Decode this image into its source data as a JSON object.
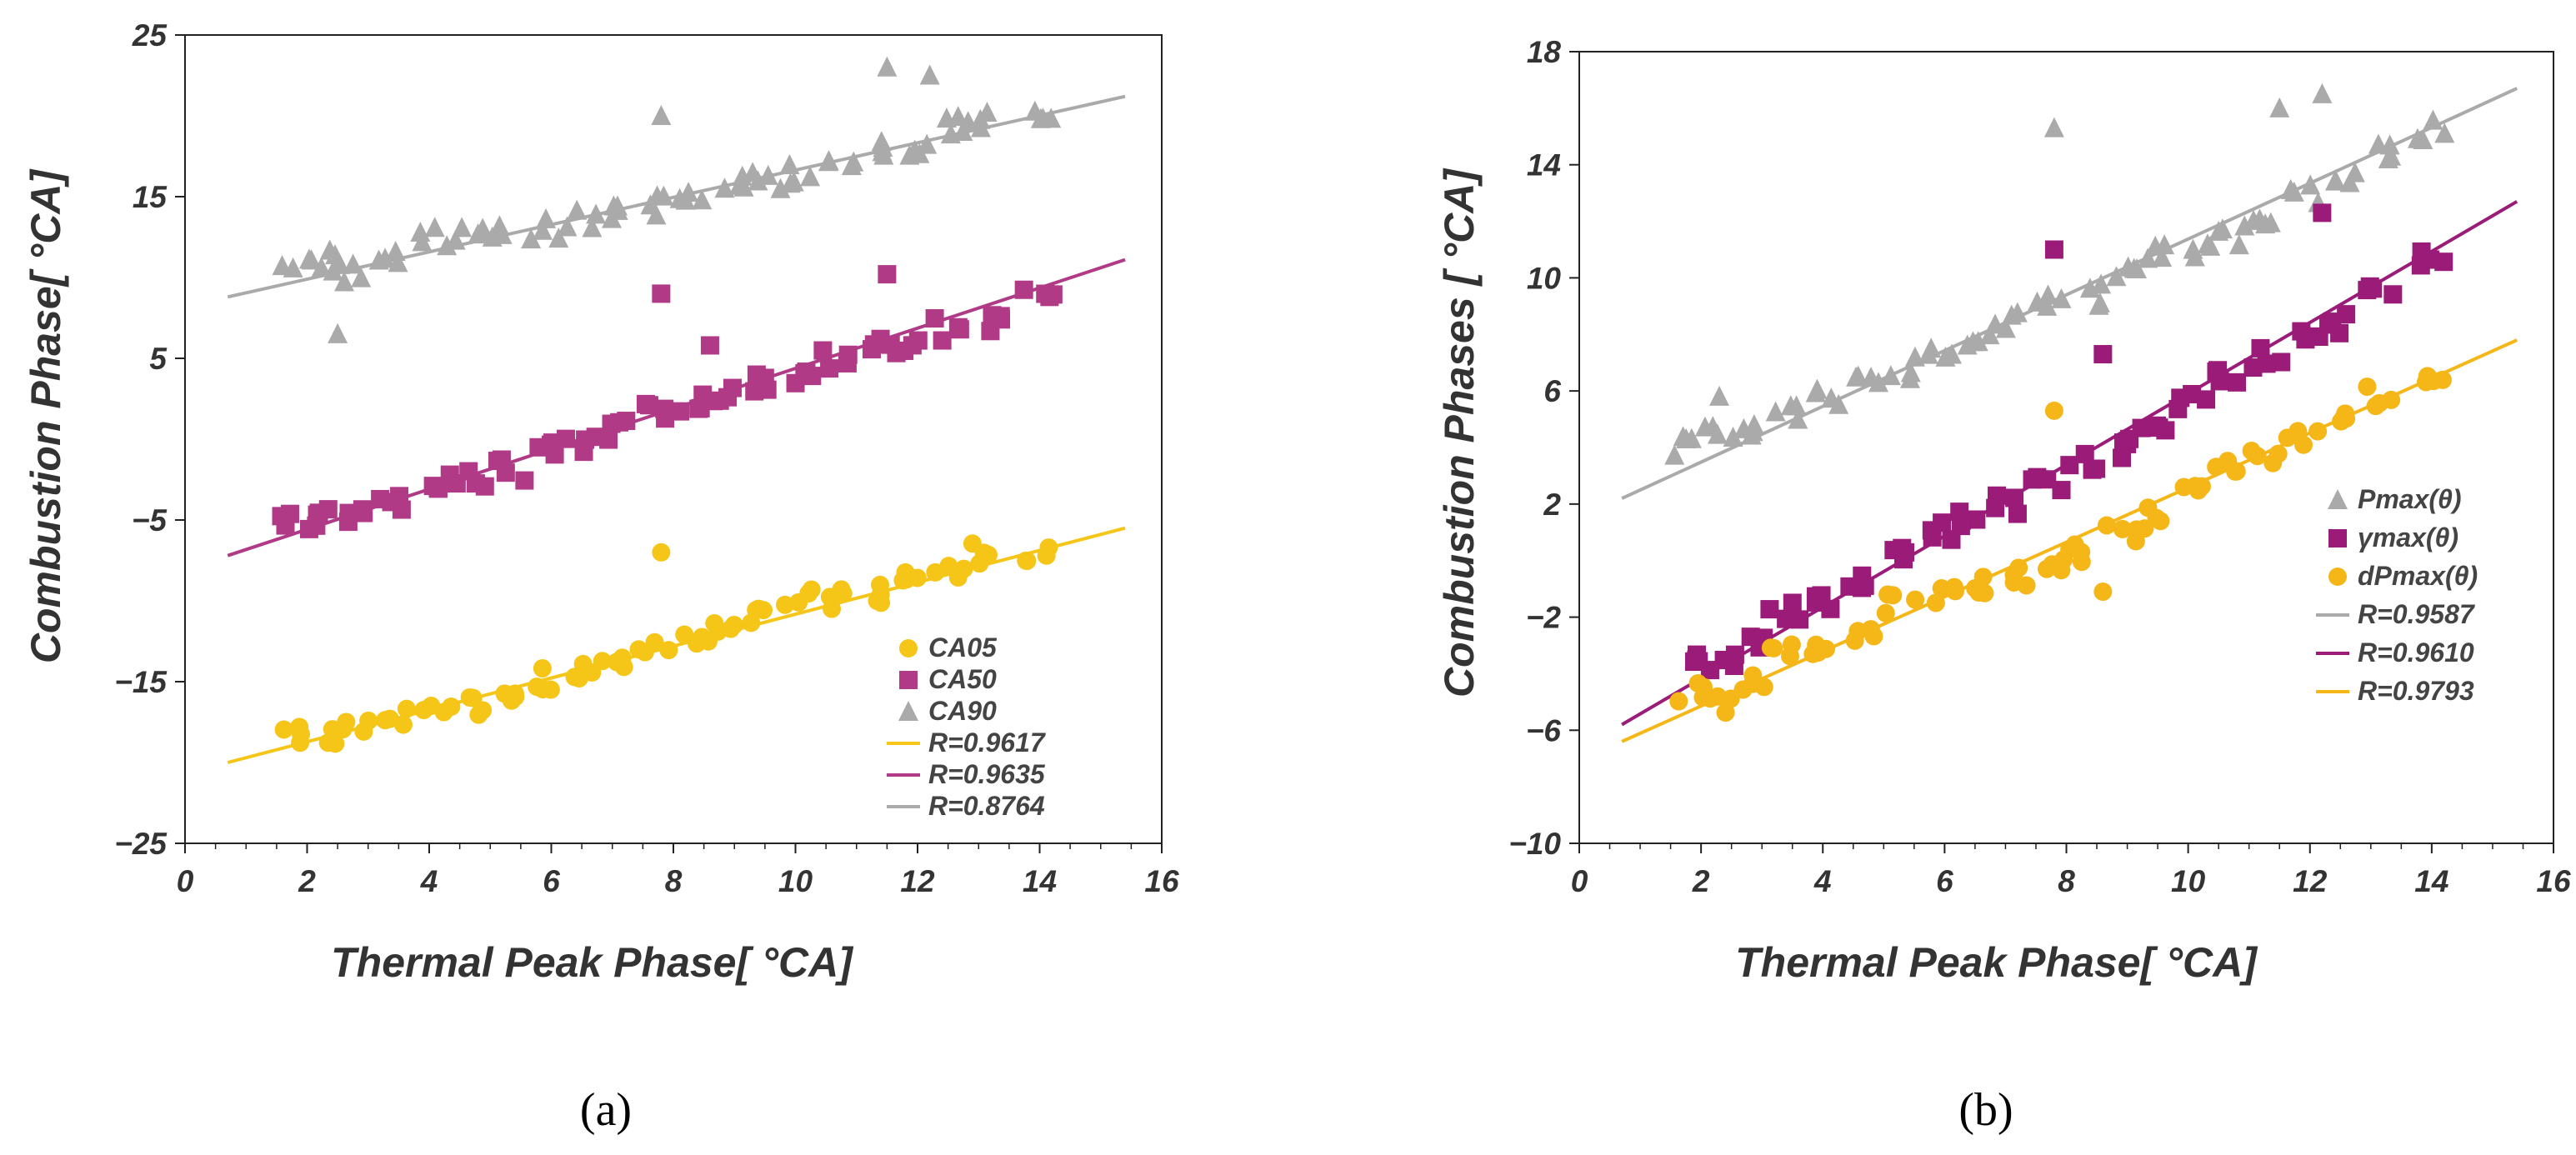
{
  "chart_data": [
    {
      "type": "scatter",
      "caption": "(a)",
      "title": "",
      "xlabel": "Thermal  Peak Phase[ °CA]",
      "ylabel": "Combustion  Phase[ °CA]",
      "xlim": [
        0,
        16
      ],
      "ylim": [
        -25,
        25
      ],
      "xticks": [
        "0",
        "2",
        "4",
        "6",
        "8",
        "10",
        "12",
        "14",
        "16"
      ],
      "yticks": [
        "25",
        "15",
        "5",
        "−5",
        "−15",
        "−25"
      ],
      "x": [
        1.8,
        2.3,
        2.8,
        3.4,
        4.1,
        4.7,
        5.3,
        5.9,
        6.5,
        7.1,
        7.7,
        8.3,
        8.9,
        9.5,
        10.1,
        10.7,
        11.3,
        11.9,
        12.5,
        13.1,
        14.0
      ],
      "series": [
        {
          "name": "CA05",
          "marker": "circle",
          "color": "#F5C518",
          "values": [
            -18.5,
            -18.4,
            -17.9,
            -17.2,
            -16.5,
            -16.5,
            -15.6,
            -14.8,
            -14.4,
            -13.8,
            -13.2,
            -12.5,
            -12.0,
            -11.0,
            -10.0,
            -9.8,
            -9.6,
            -8.5,
            -8.3,
            -7.0,
            -7.0
          ],
          "outliers": [
            {
              "x": 7.8,
              "y": -7.0
            }
          ]
        },
        {
          "name": "CA50",
          "marker": "square",
          "color": "#B03A86",
          "values": [
            -5.3,
            -5.0,
            -4.6,
            -3.7,
            -2.8,
            -2.6,
            -1.9,
            -0.9,
            -0.2,
            0.5,
            1.6,
            2.3,
            2.6,
            3.6,
            4.0,
            4.8,
            5.6,
            5.8,
            6.8,
            7.2,
            9.0
          ],
          "outliers": [
            {
              "x": 7.8,
              "y": 9.0
            },
            {
              "x": 8.6,
              "y": 5.8
            },
            {
              "x": 11.5,
              "y": 10.2
            }
          ]
        },
        {
          "name": "CA90",
          "marker": "triangle",
          "color": "#AAAAAA",
          "values": [
            11.2,
            11.0,
            10.3,
            11.5,
            12.5,
            12.8,
            12.8,
            13.0,
            13.5,
            14.2,
            14.5,
            14.8,
            15.6,
            16.0,
            16.5,
            17.3,
            17.8,
            18.2,
            19.5,
            19.8,
            20.5
          ],
          "outliers": [
            {
              "x": 7.8,
              "y": 20.0
            },
            {
              "x": 11.5,
              "y": 23.0
            },
            {
              "x": 12.2,
              "y": 22.5
            },
            {
              "x": 2.5,
              "y": 6.5
            }
          ]
        }
      ],
      "fits": [
        {
          "label": "R=0.9617",
          "color": "#F5C518",
          "x": [
            0.7,
            15.4
          ],
          "y": [
            -20.0,
            -5.5
          ]
        },
        {
          "label": "R=0.9635",
          "color": "#B03A86",
          "x": [
            0.7,
            15.4
          ],
          "y": [
            -7.2,
            11.1
          ]
        },
        {
          "label": "R=0.8764",
          "color": "#AAAAAA",
          "x": [
            0.7,
            15.4
          ],
          "y": [
            8.8,
            21.2
          ]
        }
      ],
      "legend_position": "bottom-right",
      "legend_series_order": [
        "CA05",
        "CA50",
        "CA90"
      ],
      "grid": false
    },
    {
      "type": "scatter",
      "caption": "(b)",
      "title": "",
      "xlabel": "Thermal  Peak Phase[ °CA]",
      "ylabel": "Combustion  Phases  [ °CA]",
      "xlim": [
        0,
        16
      ],
      "ylim": [
        -10,
        18
      ],
      "xticks": [
        "0",
        "2",
        "4",
        "6",
        "8",
        "10",
        "12",
        "14",
        "16"
      ],
      "yticks": [
        "18",
        "14",
        "10",
        "6",
        "2",
        "−2",
        "−6",
        "−10"
      ],
      "x": [
        1.8,
        2.3,
        2.8,
        3.4,
        4.1,
        4.7,
        5.3,
        5.9,
        6.5,
        7.1,
        7.7,
        8.3,
        8.9,
        9.5,
        10.1,
        10.7,
        11.3,
        11.9,
        12.5,
        13.1,
        14.0
      ],
      "series": [
        {
          "name": "Pmax(θ)",
          "marker": "triangle",
          "color": "#AAAAAA",
          "values": [
            4.0,
            4.5,
            4.8,
            5.2,
            5.8,
            6.2,
            6.8,
            7.4,
            7.8,
            8.5,
            9.0,
            9.4,
            10.2,
            10.8,
            11.0,
            11.5,
            12.0,
            13.0,
            13.5,
            14.5,
            15.2
          ],
          "outliers": [
            {
              "x": 7.8,
              "y": 15.3
            },
            {
              "x": 11.5,
              "y": 16.0
            },
            {
              "x": 12.2,
              "y": 16.5
            },
            {
              "x": 2.3,
              "y": 5.8
            }
          ]
        },
        {
          "name": "γmax(θ)",
          "marker": "square",
          "color": "#9B1B78",
          "values": [
            -3.4,
            -3.5,
            -3.0,
            -1.7,
            -1.5,
            -0.7,
            0.3,
            1.0,
            1.4,
            2.0,
            2.8,
            3.5,
            4.0,
            5.0,
            5.7,
            6.5,
            7.2,
            8.0,
            8.4,
            9.5,
            10.8
          ],
          "outliers": [
            {
              "x": 7.8,
              "y": 11.0
            },
            {
              "x": 8.6,
              "y": 7.3
            },
            {
              "x": 12.2,
              "y": 12.3
            }
          ]
        },
        {
          "name": "dPmax(θ)",
          "marker": "circle",
          "color": "#F5B618",
          "values": [
            -4.7,
            -5.0,
            -4.3,
            -3.3,
            -3.0,
            -2.5,
            -1.5,
            -1.3,
            -0.8,
            -0.6,
            -0.2,
            0.2,
            1.0,
            1.5,
            2.5,
            3.2,
            3.8,
            4.3,
            5.0,
            5.8,
            6.3
          ],
          "outliers": [
            {
              "x": 7.8,
              "y": 5.3
            },
            {
              "x": 8.6,
              "y": -1.1
            }
          ]
        }
      ],
      "fits": [
        {
          "label": "R=0.9587",
          "color": "#AAAAAA",
          "x": [
            0.7,
            15.4
          ],
          "y": [
            2.2,
            16.7
          ]
        },
        {
          "label": "R=0.9610",
          "color": "#9B1B78",
          "x": [
            0.7,
            15.4
          ],
          "y": [
            -5.8,
            12.7
          ]
        },
        {
          "label": "R=0.9793",
          "color": "#F5B618",
          "x": [
            0.7,
            15.4
          ],
          "y": [
            -6.4,
            7.8
          ]
        }
      ],
      "legend_position": "bottom-right",
      "legend_series_order": [
        "Pmax(θ)",
        "γmax(θ)",
        "dPmax(θ)"
      ],
      "grid": false
    }
  ]
}
